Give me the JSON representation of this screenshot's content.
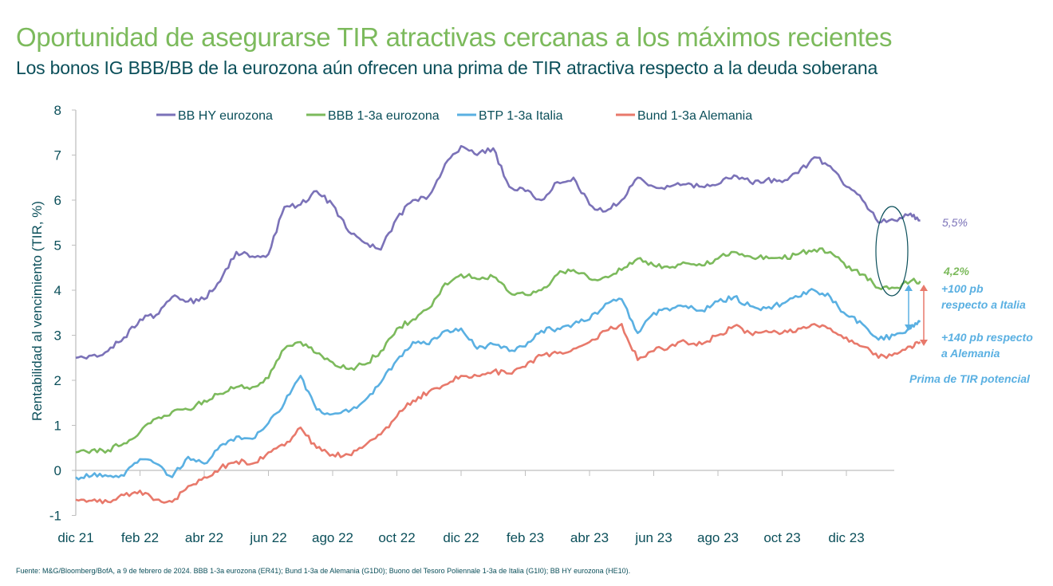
{
  "header": {
    "title": "Oportunidad de asegurarse TIR atractivas cercanas a los máximos recientes",
    "subtitle": "Los bonos IG BBB/BB de la eurozona aún ofrecen una prima de TIR atractiva respecto a la deuda soberana"
  },
  "annotations": {
    "bb_hy_end": "5,5%",
    "bbb_end": "4,2%",
    "vs_italy_line1": "+100 pb",
    "vs_italy_line2": "respecto a Italia",
    "vs_germany_line1": "+140 pb respecto",
    "vs_germany_line2": "a Alemania",
    "potential_premium": "Prima de TIR potencial"
  },
  "colors": {
    "bb_hy": "#7b72b8",
    "bbb": "#7cba5c",
    "btp": "#5ab0e2",
    "bund": "#e8796b",
    "text": "#0b4f5a",
    "title": "#7cba5c"
  },
  "source": "Fuente: M&G/Bloomberg/BofA, a 9 de febrero de 2024. BBB 1-3a eurozona (ER41); Bund 1-3a de Alemania (G1D0); Buono del Tesoro Poliennale 1-3a de Italia (G1I0); BB HY eurozona (HE10).",
  "chart_data": {
    "type": "line",
    "title": "",
    "xlabel": "",
    "ylabel": "Rentabilidad al vencimiento (TIR, %)",
    "ylim": [
      -1,
      8
    ],
    "yticks": [
      "-1",
      "0",
      "1",
      "2",
      "3",
      "4",
      "5",
      "6",
      "7",
      "8"
    ],
    "xtick_labels": [
      "dic 21",
      "feb 22",
      "abr 22",
      "jun 22",
      "ago 22",
      "oct 22",
      "dic 22",
      "feb 23",
      "abr 23",
      "jun 23",
      "ago 23",
      "oct 23",
      "dic 23"
    ],
    "x_unit": "months since dic 21",
    "x": [
      0,
      0.5,
      1,
      1.5,
      2,
      2.5,
      3,
      3.5,
      4,
      4.5,
      5,
      5.5,
      6,
      6.5,
      7,
      7.5,
      8,
      8.5,
      9,
      9.5,
      10,
      10.5,
      11,
      11.5,
      12,
      12.5,
      13,
      13.5,
      14,
      14.5,
      15,
      15.5,
      16,
      16.5,
      17,
      17.5,
      18,
      18.5,
      19,
      19.5,
      20,
      20.5,
      21,
      21.5,
      22,
      22.5,
      23,
      23.5,
      24,
      24.5,
      25,
      25.5,
      26,
      26.3
    ],
    "series": [
      {
        "name": "BB HY eurozona",
        "values": [
          2.5,
          2.55,
          2.65,
          2.95,
          3.35,
          3.45,
          3.85,
          3.75,
          3.8,
          4.2,
          4.85,
          4.75,
          4.8,
          5.85,
          5.9,
          6.2,
          5.9,
          5.3,
          5.05,
          4.9,
          5.6,
          6.0,
          6.1,
          6.8,
          7.2,
          7.0,
          7.15,
          6.3,
          6.2,
          6.0,
          6.4,
          6.5,
          5.9,
          5.75,
          6.0,
          6.5,
          6.3,
          6.3,
          6.35,
          6.3,
          6.35,
          6.55,
          6.4,
          6.45,
          6.4,
          6.6,
          6.95,
          6.75,
          6.3,
          6.0,
          5.5,
          5.55,
          5.7,
          5.55
        ]
      },
      {
        "name": "BBB 1-3a eurozona",
        "values": [
          0.4,
          0.45,
          0.45,
          0.6,
          0.85,
          1.15,
          1.3,
          1.35,
          1.55,
          1.7,
          1.85,
          1.85,
          2.05,
          2.7,
          2.85,
          2.6,
          2.4,
          2.25,
          2.35,
          2.65,
          3.15,
          3.35,
          3.6,
          4.15,
          4.35,
          4.25,
          4.3,
          3.95,
          3.9,
          4.0,
          4.35,
          4.45,
          4.25,
          4.3,
          4.45,
          4.7,
          4.55,
          4.5,
          4.6,
          4.55,
          4.7,
          4.85,
          4.75,
          4.75,
          4.7,
          4.8,
          4.9,
          4.85,
          4.5,
          4.35,
          4.05,
          4.05,
          4.2,
          4.2
        ]
      },
      {
        "name": "BTP 1-3a Italia",
        "values": [
          -0.15,
          -0.12,
          -0.13,
          -0.12,
          0.25,
          0.15,
          -0.15,
          0.3,
          0.15,
          0.55,
          0.75,
          0.7,
          1.05,
          1.5,
          2.1,
          1.35,
          1.25,
          1.3,
          1.55,
          1.95,
          2.45,
          2.85,
          2.8,
          3.1,
          3.15,
          2.7,
          2.8,
          2.65,
          2.75,
          3.1,
          3.15,
          3.25,
          3.35,
          3.7,
          3.8,
          3.05,
          3.5,
          3.55,
          3.65,
          3.55,
          3.75,
          3.85,
          3.65,
          3.6,
          3.7,
          3.85,
          4.0,
          3.85,
          3.45,
          3.25,
          2.9,
          3.0,
          3.15,
          3.3
        ]
      },
      {
        "name": "Bund 1-3a Alemania",
        "values": [
          -0.65,
          -0.67,
          -0.7,
          -0.55,
          -0.45,
          -0.65,
          -0.7,
          -0.35,
          -0.15,
          0.05,
          0.2,
          0.15,
          0.4,
          0.55,
          0.95,
          0.5,
          0.35,
          0.35,
          0.55,
          0.8,
          1.2,
          1.55,
          1.75,
          1.9,
          2.1,
          2.1,
          2.2,
          2.15,
          2.3,
          2.55,
          2.6,
          2.7,
          2.85,
          3.1,
          3.25,
          2.45,
          2.65,
          2.75,
          2.85,
          2.8,
          3.0,
          3.2,
          3.05,
          3.1,
          3.05,
          3.15,
          3.25,
          3.15,
          2.95,
          2.75,
          2.5,
          2.6,
          2.75,
          2.85
        ]
      }
    ],
    "legend_position": "top",
    "grid": false
  }
}
